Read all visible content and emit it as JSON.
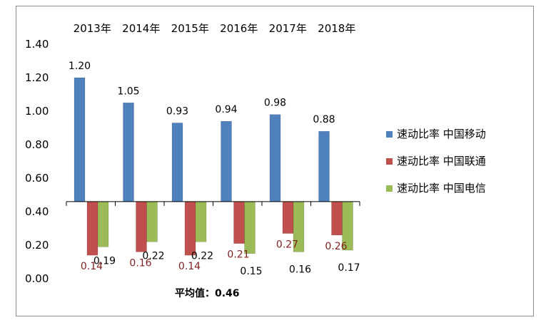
{
  "chart_data": {
    "type": "bar",
    "categories": [
      "2013年",
      "2014年",
      "2015年",
      "2016年",
      "2017年",
      "2018年"
    ],
    "series": [
      {
        "name": "速动比率 中国移动",
        "color": "#4f81bd",
        "values": [
          1.2,
          1.05,
          0.93,
          0.94,
          0.98,
          0.88
        ],
        "value_labels": [
          "1.20",
          "1.05",
          "0.93",
          "0.94",
          "0.98",
          "0.88"
        ],
        "label_color": "#000000"
      },
      {
        "name": "速动比率 中国联通",
        "color": "#c0504d",
        "values": [
          0.14,
          0.16,
          0.14,
          0.21,
          0.27,
          0.26
        ],
        "value_labels": [
          "0.14",
          "0.16",
          "0.14",
          "0.21",
          "0.27",
          "0.26"
        ],
        "label_color": "#7f1f1f"
      },
      {
        "name": "速动比率 中国电信",
        "color": "#9bbb59",
        "values": [
          0.19,
          0.22,
          0.22,
          0.15,
          0.16,
          0.17
        ],
        "value_labels": [
          "0.19",
          "0.22",
          "0.22",
          "0.15",
          "0.16",
          "0.17"
        ],
        "label_color": "#000000"
      }
    ],
    "baseline": 0.46,
    "y_ticks": [
      "0.00",
      "0.20",
      "0.40",
      "0.60",
      "0.80",
      "1.00",
      "1.20",
      "1.40"
    ],
    "ylim": [
      0,
      1.4
    ],
    "average_annotation": "平均值：0.46",
    "category_axis_position": "top",
    "legend_position": "right",
    "grid": false
  }
}
